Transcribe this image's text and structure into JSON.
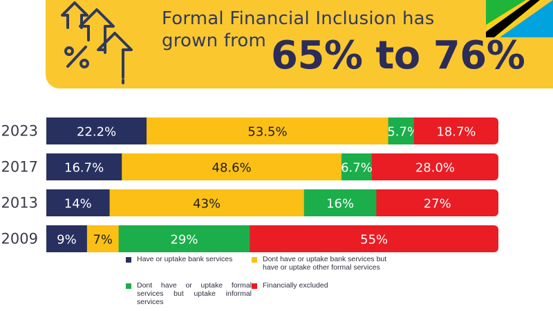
{
  "header": {
    "line1": "Formal Financial Inclusion has",
    "line2": "grown from",
    "highlight": "65% to 76%"
  },
  "colors": {
    "banner": "#fbc72f",
    "bank": "#27305f",
    "other_formal": "#fbbf16",
    "informal": "#1bae4b",
    "excluded": "#ea1c24",
    "headline_text": "#303a5a",
    "highlight_text": "#2b2c59"
  },
  "chart_data": {
    "type": "bar",
    "orientation": "horizontal",
    "stacked": true,
    "categories": [
      "2023",
      "2017",
      "2013",
      "2009"
    ],
    "series": [
      {
        "name": "Have or uptake bank services",
        "values": [
          22.2,
          16.7,
          14,
          9
        ],
        "labels": [
          "22.2%",
          "16.7%",
          "14%",
          "9%"
        ],
        "color": "#27305f",
        "label_color": "#ffffff"
      },
      {
        "name": "Dont have or uptake bank services but have or uptake other formal services",
        "values": [
          53.5,
          48.6,
          43,
          7
        ],
        "labels": [
          "53.5%",
          "48.6%",
          "43%",
          "7%"
        ],
        "color": "#fbbf16",
        "label_color": "#1e1e1e"
      },
      {
        "name": "Dont have or uptake formal services but uptake informal services",
        "values": [
          5.7,
          6.7,
          16,
          29
        ],
        "labels": [
          "5.7%",
          "6.7%",
          "16%",
          "29%"
        ],
        "color": "#1bae4b",
        "label_color": "#ffffff"
      },
      {
        "name": "Financially excluded",
        "values": [
          18.7,
          28.0,
          27,
          55
        ],
        "labels": [
          "18.7%",
          "28.0%",
          "27%",
          "55%"
        ],
        "color": "#ea1c24",
        "label_color": "#ffffff"
      }
    ],
    "xlim": [
      0,
      100
    ],
    "grid": false,
    "legend_position": "bottom"
  },
  "legend": [
    {
      "label": "Have or uptake bank services",
      "color": "#27305f"
    },
    {
      "label": "Dont have or uptake bank services but have or uptake other formal services",
      "color": "#fbbf16"
    },
    {
      "label": "Dont have or uptake formal services but uptake informal services",
      "color": "#1bae4b"
    },
    {
      "label": "Financially excluded",
      "color": "#ea1c24"
    }
  ],
  "icons": {
    "banner_icon": "percent-growth-arrows-icon",
    "flag": "tanzania-flag"
  }
}
